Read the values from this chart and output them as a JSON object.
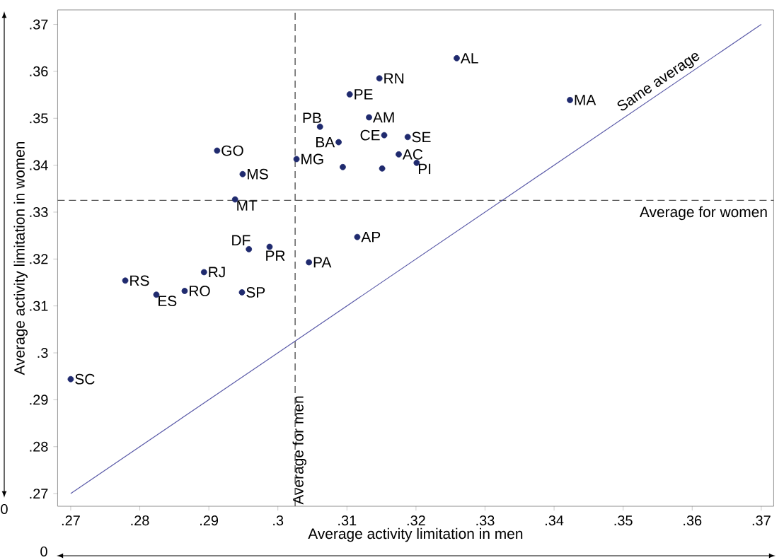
{
  "chart_data": {
    "type": "scatter",
    "xlabel": "Average activity limitation in men",
    "ylabel": "Average activity limitation in women",
    "xlim": [
      0.2681,
      0.3718
    ],
    "ylim": [
      0.2673,
      0.3731
    ],
    "xticks": [
      {
        "value": 0.27,
        "label": ".27"
      },
      {
        "value": 0.28,
        "label": ".28"
      },
      {
        "value": 0.29,
        "label": ".29"
      },
      {
        "value": 0.3,
        "label": ".3"
      },
      {
        "value": 0.31,
        "label": ".31"
      },
      {
        "value": 0.32,
        "label": ".32"
      },
      {
        "value": 0.33,
        "label": ".33"
      },
      {
        "value": 0.34,
        "label": ".34"
      },
      {
        "value": 0.35,
        "label": ".35"
      },
      {
        "value": 0.36,
        "label": ".36"
      },
      {
        "value": 0.37,
        "label": ".37"
      }
    ],
    "yticks": [
      {
        "value": 0.27,
        "label": ".27"
      },
      {
        "value": 0.28,
        "label": ".28"
      },
      {
        "value": 0.29,
        "label": ".29"
      },
      {
        "value": 0.3,
        "label": ".3"
      },
      {
        "value": 0.31,
        "label": ".31"
      },
      {
        "value": 0.32,
        "label": ".32"
      },
      {
        "value": 0.33,
        "label": ".33"
      },
      {
        "value": 0.34,
        "label": ".34"
      },
      {
        "value": 0.35,
        "label": ".35"
      },
      {
        "value": 0.36,
        "label": ".36"
      },
      {
        "value": 0.37,
        "label": ".37"
      }
    ],
    "series": [
      {
        "marker": "circle",
        "color": "#1f2a6e",
        "x": [
          0.3259,
          0.3147,
          0.3104,
          0.3423,
          0.3061,
          0.3132,
          0.3088,
          0.3154,
          0.3188,
          0.3175,
          0.3201,
          0.2912,
          0.3027,
          0.2949,
          0.2938,
          0.3115,
          0.2958,
          0.2988,
          0.3045,
          0.2893,
          0.2779,
          0.2824,
          0.2865,
          0.2948,
          0.27,
          0.3094,
          0.3151
        ],
        "values": [
          0.3628,
          0.3585,
          0.3551,
          0.3539,
          0.3482,
          0.3502,
          0.3449,
          0.3464,
          0.346,
          0.3423,
          0.3405,
          0.3431,
          0.3413,
          0.3381,
          0.3327,
          0.3247,
          0.3221,
          0.3226,
          0.3193,
          0.3172,
          0.3154,
          0.3124,
          0.3132,
          0.3129,
          0.2944,
          0.3396,
          0.3393
        ]
      },
      {
        "type": "line",
        "name": "Same average",
        "marker": "none",
        "color": "#5a5aa8",
        "x": [
          0.27,
          0.37
        ],
        "values": [
          0.27,
          0.37
        ]
      }
    ],
    "ref_lines": [
      {
        "axis": "x",
        "value": 0.3025,
        "label": "Average for men",
        "color": "#555555",
        "line_style": "dashed"
      },
      {
        "axis": "y",
        "value": 0.3325,
        "label": "Average for women",
        "color": "#555555",
        "line_style": "dashed"
      }
    ],
    "annotations": [
      {
        "text": "AL",
        "x": 0.3259,
        "y": 0.3628
      },
      {
        "text": "RN",
        "x": 0.3147,
        "y": 0.3585
      },
      {
        "text": "PE",
        "x": 0.3104,
        "y": 0.3551
      },
      {
        "text": "MA",
        "x": 0.3423,
        "y": 0.3539
      },
      {
        "text": "PB",
        "x": 0.3061,
        "y": 0.3482
      },
      {
        "text": "AM",
        "x": 0.3132,
        "y": 0.3502
      },
      {
        "text": "BA",
        "x": 0.3088,
        "y": 0.3449
      },
      {
        "text": "CE",
        "x": 0.3154,
        "y": 0.3464
      },
      {
        "text": "SE",
        "x": 0.3188,
        "y": 0.346
      },
      {
        "text": "AC",
        "x": 0.3175,
        "y": 0.3423
      },
      {
        "text": "PI",
        "x": 0.3201,
        "y": 0.3405
      },
      {
        "text": "GO",
        "x": 0.2912,
        "y": 0.3431
      },
      {
        "text": "MG",
        "x": 0.3027,
        "y": 0.3413
      },
      {
        "text": "MS",
        "x": 0.2949,
        "y": 0.3381
      },
      {
        "text": "MT",
        "x": 0.2938,
        "y": 0.3327
      },
      {
        "text": "AP",
        "x": 0.3115,
        "y": 0.3247
      },
      {
        "text": "DF",
        "x": 0.2958,
        "y": 0.3221
      },
      {
        "text": "PR",
        "x": 0.2988,
        "y": 0.3226
      },
      {
        "text": "PA",
        "x": 0.3045,
        "y": 0.3193
      },
      {
        "text": "RJ",
        "x": 0.2893,
        "y": 0.3172
      },
      {
        "text": "RS",
        "x": 0.2779,
        "y": 0.3154
      },
      {
        "text": "ES",
        "x": 0.2824,
        "y": 0.3124
      },
      {
        "text": "RO",
        "x": 0.2865,
        "y": 0.3132
      },
      {
        "text": "SP",
        "x": 0.2948,
        "y": 0.3129
      },
      {
        "text": "SC",
        "x": 0.27,
        "y": 0.2944
      },
      "0",
      "0"
    ]
  }
}
